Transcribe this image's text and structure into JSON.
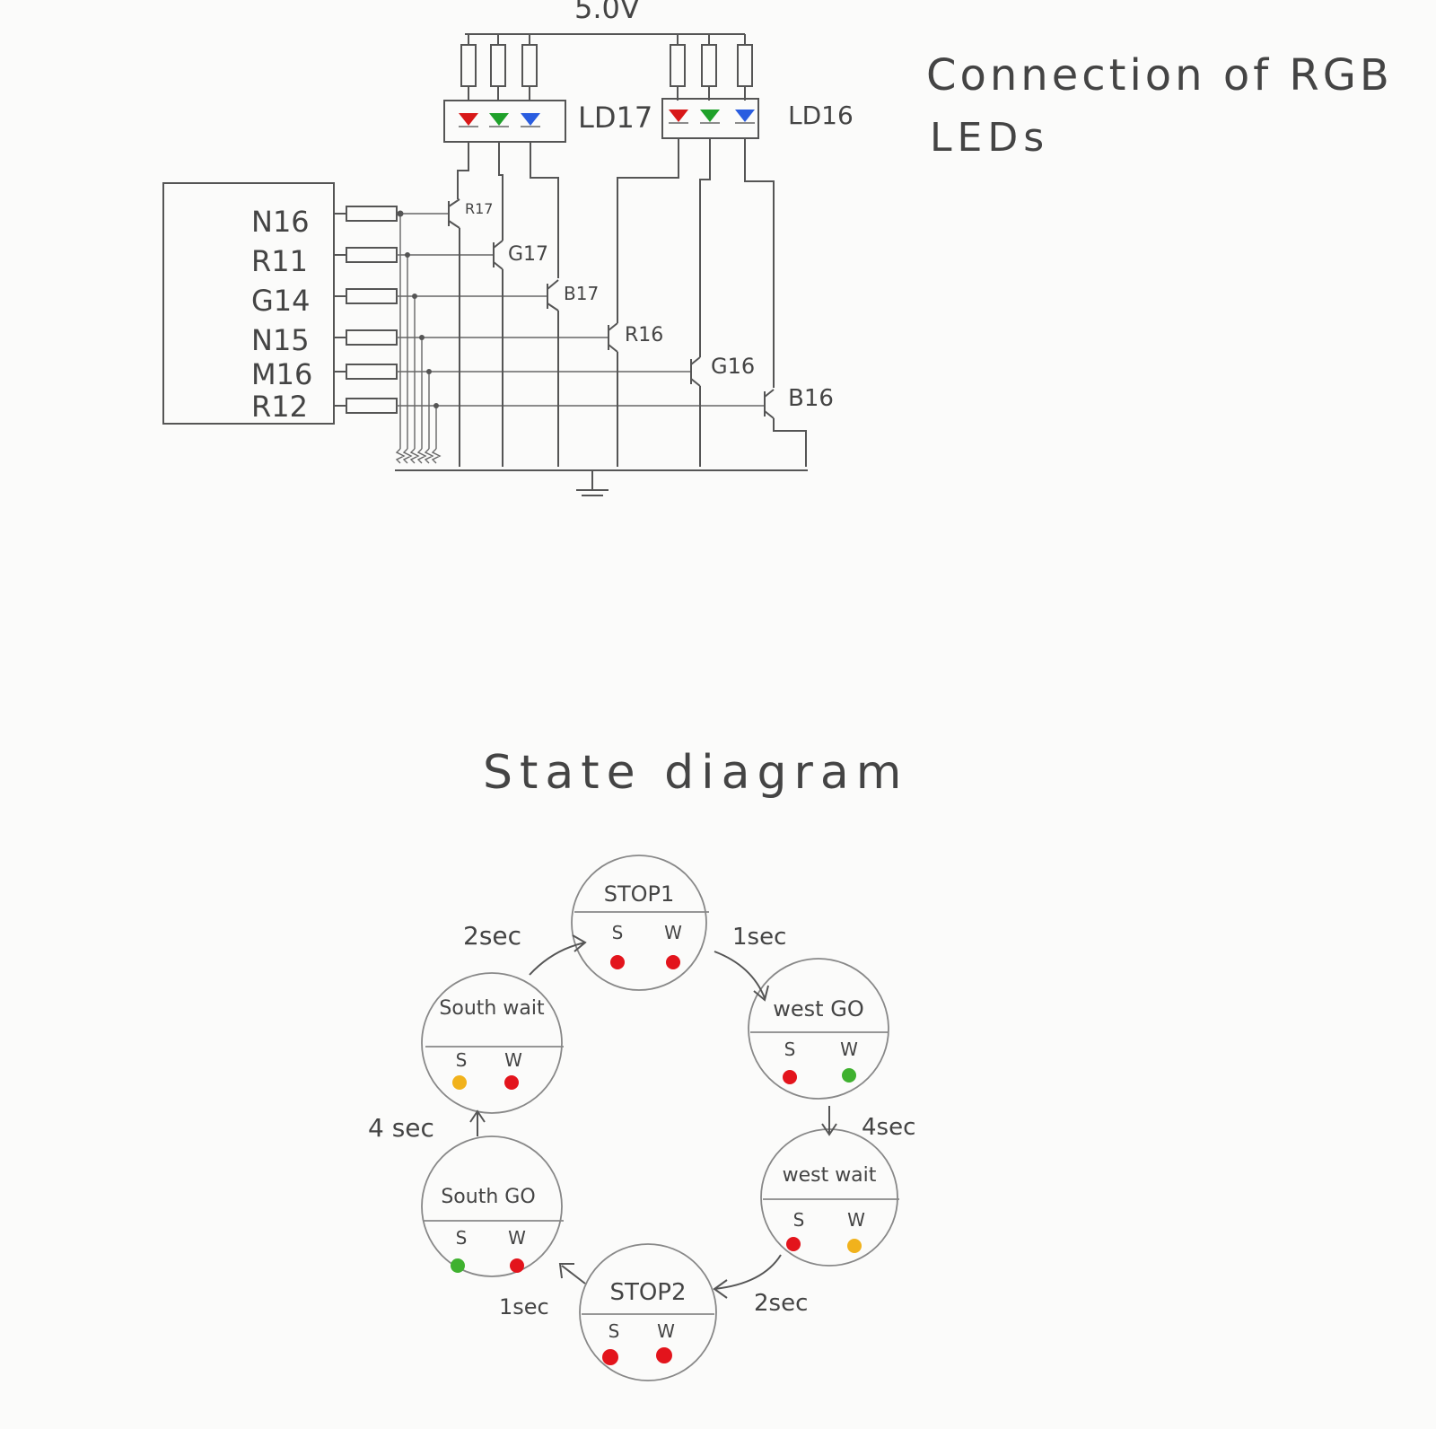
{
  "circuit": {
    "title_line1": "Connection of RGB",
    "title_line2": "LEDs",
    "supply_label": "5.0V",
    "led_label_1": "LD17",
    "led_label_2": "LD16",
    "pins": [
      "N16",
      "R11",
      "G14",
      "N15",
      "M16",
      "R12"
    ],
    "transistors": [
      "R17",
      "G17",
      "B17",
      "R16",
      "G16",
      "B16"
    ],
    "led_colors": {
      "red": "#d81818",
      "green": "#1fa12a",
      "blue": "#2a5de0"
    }
  },
  "state_diagram": {
    "title": "State diagram",
    "column_labels": {
      "south": "S",
      "west": "W"
    },
    "light_colors": {
      "red": "#e3141c",
      "green": "#3fb12f",
      "yellow": "#f1b21c"
    },
    "states": [
      {
        "name": "STOP1",
        "south": "red",
        "west": "red"
      },
      {
        "name": "west GO",
        "south": "red",
        "west": "green"
      },
      {
        "name": "west wait",
        "south": "red",
        "west": "yellow"
      },
      {
        "name": "STOP2",
        "south": "red",
        "west": "red"
      },
      {
        "name": "South GO",
        "south": "green",
        "west": "red"
      },
      {
        "name": "South wait",
        "south": "yellow",
        "west": "red"
      }
    ],
    "transitions": [
      {
        "from": "STOP1",
        "to": "west GO",
        "label": "1sec"
      },
      {
        "from": "west GO",
        "to": "west wait",
        "label": "4sec"
      },
      {
        "from": "west wait",
        "to": "STOP2",
        "label": "2sec"
      },
      {
        "from": "STOP2",
        "to": "South GO",
        "label": "1sec"
      },
      {
        "from": "South GO",
        "to": "South wait",
        "label": "4 sec"
      },
      {
        "from": "South wait",
        "to": "STOP1",
        "label": "2sec"
      }
    ]
  }
}
